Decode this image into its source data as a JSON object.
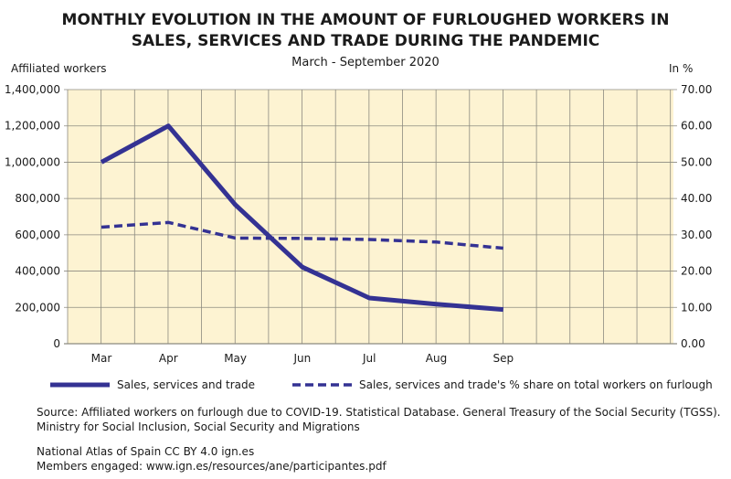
{
  "chart_data": {
    "type": "line",
    "title": "MONTHLY EVOLUTION IN THE AMOUNT OF FURLOUGHED WORKERS IN SALES, SERVICES AND TRADE DURING THE PANDEMIC",
    "title_lines": [
      "MONTHLY EVOLUTION IN THE AMOUNT OF FURLOUGHED WORKERS IN",
      "SALES, SERVICES AND TRADE DURING THE PANDEMIC"
    ],
    "subtitle": "March - September 2020",
    "ylabel": "Affiliated workers",
    "y2label": "In %",
    "categories": [
      "Mar",
      "Apr",
      "May",
      "Jun",
      "Jul",
      "Aug",
      "Sep"
    ],
    "ylim": [
      0,
      1400000
    ],
    "y2lim": [
      0,
      70
    ],
    "yticks": [
      "0",
      "200,000",
      "400,000",
      "600,000",
      "800,000",
      "1,000,000",
      "1,200,000",
      "1,400,000"
    ],
    "y2ticks": [
      "0.00",
      "10.00",
      "20.00",
      "30.00",
      "40.00",
      "50.00",
      "60.00",
      "70.00"
    ],
    "grid": true,
    "legend_placement": "bottom",
    "series": [
      {
        "name": "Sales, services and trade",
        "axis": "left",
        "style": "solid",
        "values": [
          1000000,
          1200000,
          765000,
          422000,
          252000,
          218000,
          188000
        ]
      },
      {
        "name": "Sales, services and trade's % share on total workers on furlough",
        "axis": "right",
        "style": "dashed",
        "values": [
          32.1,
          33.4,
          29.1,
          29.0,
          28.7,
          28.0,
          26.3
        ]
      }
    ],
    "colors": {
      "line": "#343293",
      "plot_bg": "#fdf3d2",
      "grid": "#8c8a80"
    }
  },
  "source_lines": [
    "Source: Affiliated workers on furlough due to COVID-19. Statistical Database. General Treasury of the Social Security (TGSS).",
    "Ministry for Social Inclusion, Social Security and Migrations"
  ],
  "credit_lines": [
    "National Atlas of Spain CC BY 4.0 ign.es",
    "Members engaged: www.ign.es/resources/ane/participantes.pdf"
  ]
}
